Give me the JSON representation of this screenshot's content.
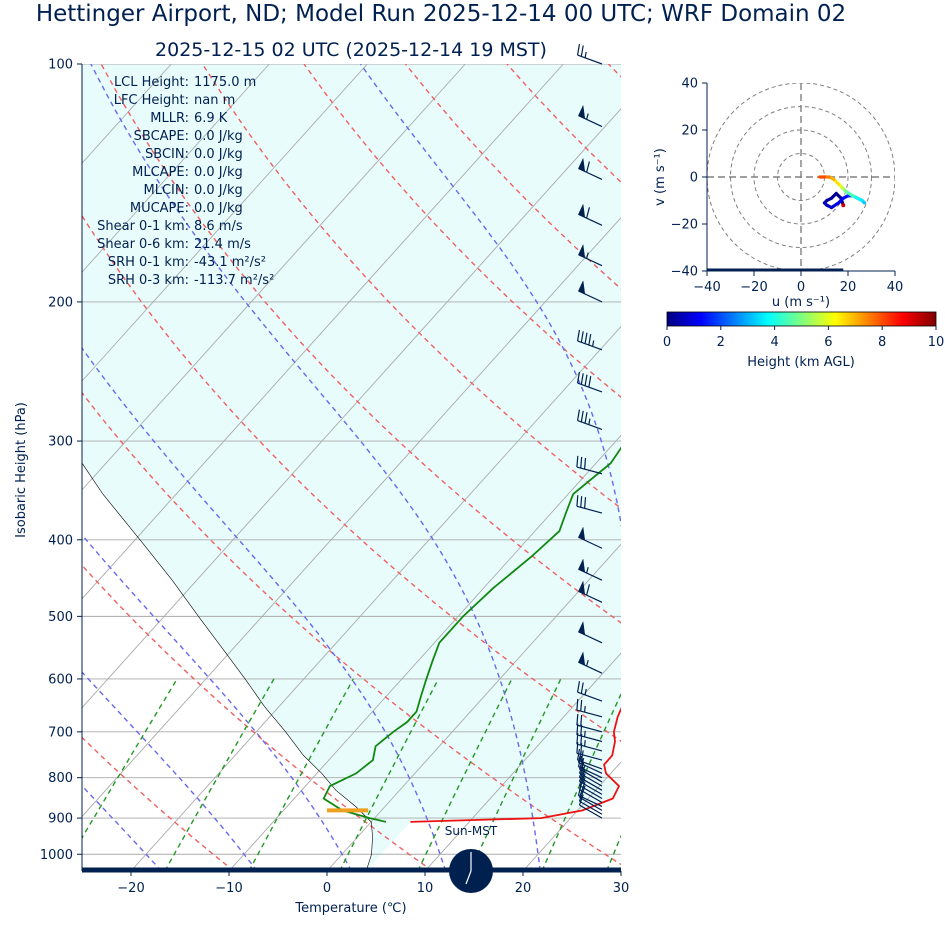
{
  "title": "Hettinger Airport, ND; Model Run 2025-12-14 00 UTC; WRF Domain 02",
  "subtitle": "2025-12-15 02 UTC  (2025-12-14 19 MST)",
  "colors": {
    "temperature": "#ee1111",
    "dewpoint": "#118811",
    "parcel": "#000000",
    "dry_adiabat": "#f06060",
    "moist_adiabat": "#6868f0",
    "mixing_ratio": "#229922",
    "cape_fill": "#e8fcfc",
    "barb": "#002050",
    "text": "#002050",
    "accent_bar": "#f0a020"
  },
  "stats": [
    {
      "label": "LCL Height:",
      "value": "1175.0 m"
    },
    {
      "label": "LFC Height:",
      "value": "nan m"
    },
    {
      "label": "MLLR:",
      "value": "6.9 K"
    },
    {
      "label": "SBCAPE:",
      "value": "0.0 J/kg"
    },
    {
      "label": "SBCIN:",
      "value": "0.0 J/kg"
    },
    {
      "label": "MLCAPE:",
      "value": "0.0 J/kg"
    },
    {
      "label": "MLCIN:",
      "value": "0.0 J/kg"
    },
    {
      "label": "MUCAPE:",
      "value": "0.0 J/kg"
    },
    {
      "label": "Shear 0-1 km:",
      "value": "8.6 m/s"
    },
    {
      "label": "Shear 0-6 km:",
      "value": "21.4 m/s"
    },
    {
      "label": "SRH 0-1 km:",
      "value": "-43.1 m²/s²"
    },
    {
      "label": "SRH 0-3 km:",
      "value": "-113.7 m²/s²"
    }
  ],
  "sun_label": "Sun-MST",
  "chart_data": [
    {
      "type": "skewt",
      "xlabel": "Temperature (℃)",
      "ylabel": "Isobaric Height (hPa)",
      "xlim": [
        -25,
        30
      ],
      "ylim": [
        1050,
        100
      ],
      "xticks": [
        -20,
        -10,
        0,
        10,
        20,
        30
      ],
      "yticks": [
        100,
        200,
        300,
        400,
        500,
        600,
        700,
        800,
        900,
        1000
      ],
      "temperature": {
        "p": [
          910,
          900,
          880,
          850,
          820,
          790,
          770,
          750,
          720,
          700,
          670,
          630,
          600,
          560,
          520,
          480,
          440,
          400,
          370,
          340,
          310,
          290,
          270,
          240,
          215,
          200,
          190,
          180,
          160,
          140,
          130,
          120,
          110,
          100
        ],
        "t": [
          4,
          17,
          20.5,
          22.5,
          22,
          19.5,
          18.5,
          18.5,
          17.5,
          16.5,
          15.5,
          14.5,
          14,
          12.5,
          10.5,
          8.5,
          6.5,
          4.5,
          2.5,
          0.5,
          -2.5,
          -4.5,
          -5.5,
          -6.5,
          -7.5,
          -7,
          -6,
          -5,
          -2,
          3,
          5.5,
          7.5,
          8.5,
          10
        ]
      },
      "dewpoint": {
        "p": [
          910,
          900,
          880,
          850,
          820,
          790,
          760,
          730,
          700,
          680,
          660,
          630,
          600,
          570,
          540,
          500,
          460,
          420,
          390,
          370,
          350,
          320,
          300,
          270,
          240,
          215,
          200,
          190,
          175,
          160,
          140,
          120,
          100
        ],
        "t": [
          1.5,
          -0.5,
          -4,
          -7,
          -7.5,
          -6,
          -5.5,
          -6.5,
          -6,
          -5.5,
          -5.5,
          -6.5,
          -7.5,
          -8.5,
          -9.5,
          -9.5,
          -9,
          -8,
          -7.5,
          -8.5,
          -9.5,
          -8.5,
          -9,
          -11,
          -12.5,
          -13.5,
          -13.5,
          -13.5,
          -13.5,
          -14,
          -13.5,
          -11,
          -6.5
        ]
      },
      "parcel": {
        "p": [
          1050,
          1000,
          950,
          910,
          870,
          830,
          790,
          750,
          700,
          650,
          600,
          550,
          500,
          450,
          400,
          350,
          300,
          250,
          200,
          150,
          100
        ],
        "t": [
          4,
          3,
          1.5,
          0,
          -3,
          -6.5,
          -9.5,
          -13,
          -17,
          -21.5,
          -26,
          -31,
          -36.5,
          -42.5,
          -49.5,
          -57.5,
          -66,
          -76,
          -87,
          -100,
          -116
        ]
      },
      "surface_marker_hPa": 880,
      "surface_marker_range": [
        0,
        4.2
      ],
      "wind_barbs": {
        "p": [
          100,
          120,
          140,
          160,
          180,
          200,
          230,
          260,
          290,
          330,
          370,
          410,
          450,
          480,
          540,
          590,
          640,
          670,
          700,
          720,
          740,
          760,
          780,
          790,
          800,
          810,
          820,
          830,
          840,
          850,
          860,
          870,
          880,
          890,
          900
        ],
        "speed_kt": [
          25,
          55,
          60,
          60,
          55,
          50,
          45,
          40,
          35,
          30,
          30,
          50,
          55,
          60,
          50,
          55,
          25,
          25,
          20,
          25,
          25,
          20,
          20,
          15,
          15,
          15,
          15,
          15,
          15,
          15,
          15,
          10,
          10,
          10,
          10
        ],
        "dir_deg": [
          290,
          295,
          295,
          295,
          295,
          295,
          290,
          290,
          290,
          285,
          285,
          295,
          295,
          295,
          295,
          295,
          290,
          285,
          285,
          285,
          285,
          285,
          290,
          295,
          295,
          300,
          300,
          300,
          300,
          300,
          300,
          295,
          300,
          300,
          300
        ]
      }
    },
    {
      "type": "hodograph",
      "xlabel": "u (m s⁻¹)",
      "ylabel": "v (m s⁻¹)",
      "xlim": [
        -40,
        40
      ],
      "ylim": [
        -40,
        40
      ],
      "xticks": [
        -40,
        -20,
        0,
        20,
        40
      ],
      "yticks": [
        -40,
        -20,
        0,
        20,
        40
      ],
      "rings": [
        10,
        20,
        30,
        40
      ],
      "u": [
        18,
        17,
        15,
        13,
        11,
        10,
        11,
        13,
        16,
        18,
        20,
        22,
        24,
        26,
        27,
        26,
        24,
        22,
        19,
        18,
        17,
        16,
        14,
        12,
        10,
        8
      ],
      "v": [
        -12,
        -9,
        -7,
        -9,
        -10,
        -11,
        -12,
        -13,
        -11,
        -9,
        -8,
        -8,
        -9,
        -10,
        -11,
        -10,
        -9,
        -8,
        -6,
        -5,
        -4,
        -3,
        -1,
        0,
        0,
        0
      ],
      "h_km": [
        0,
        0.1,
        0.2,
        0.3,
        0.4,
        0.5,
        0.7,
        0.9,
        1.1,
        1.3,
        1.6,
        2,
        2.4,
        2.8,
        3.2,
        3.6,
        4,
        4.5,
        5,
        5.5,
        6,
        6.5,
        7,
        7.5,
        8,
        9
      ]
    }
  ],
  "colorbar": {
    "label": "Height (km AGL)",
    "ticks": [
      0,
      2,
      4,
      6,
      8,
      10
    ],
    "stops": [
      "#00007f",
      "#0000ff",
      "#007fff",
      "#00ffff",
      "#7fff7f",
      "#ffff00",
      "#ff7f00",
      "#ff0000",
      "#7f0000"
    ]
  }
}
